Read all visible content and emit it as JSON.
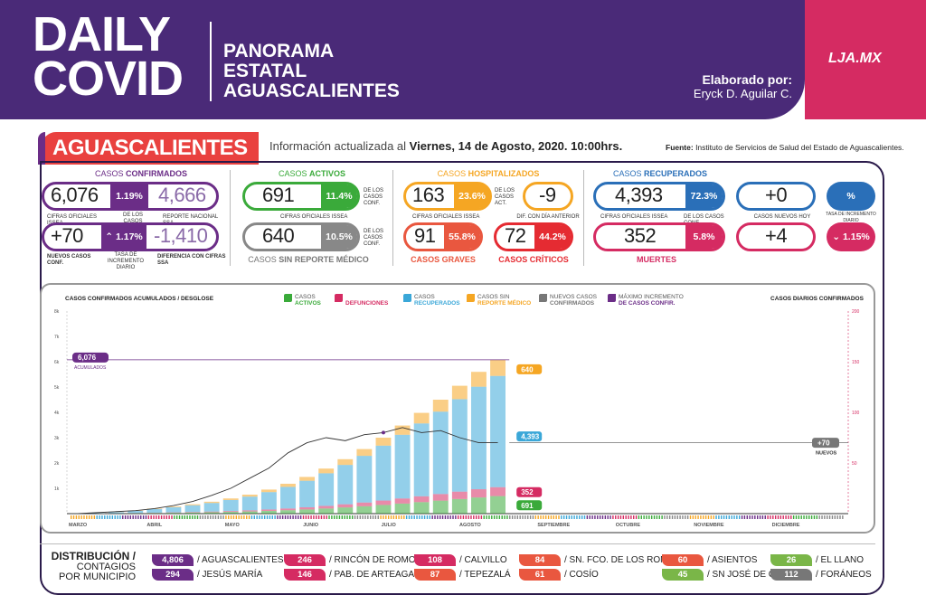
{
  "header": {
    "title_l1": "DAILY",
    "title_l2": "COVID",
    "sub1": "PANORAMA",
    "sub2": "ESTATAL",
    "sub3": "AGUASCALIENTES",
    "elab_label": "Elaborado por:",
    "elab_name": "Eryck D. Aguilar C.",
    "logo": "LJA.MX"
  },
  "state": "AGUASCALIENTES",
  "update_prefix": "Información actualizada al ",
  "update_date": "Viernes, 14 de Agosto, 2020. 10:00hrs.",
  "fuente_label": "Fuente:",
  "fuente_text": " Instituto de Servicios de Salud del Estado de Aguascalientes.",
  "confirmados": {
    "h1": "CASOS ",
    "h2": "CONFIRMADOS",
    "value": "6,076",
    "pct": "1.19%",
    "pct_label": "DE LOS CASOS NACIONALES",
    "nat": "4,666",
    "l_value": "CIFRAS OFICIALES ISSEA",
    "l_nat": "REPORTE NACIONAL SSA",
    "new": "+70",
    "new_label": "NUEVOS CASOS CONF.",
    "rate": "1.17%",
    "rate_label": "TASA DE INCREMENTO DIARIO",
    "diff": "-1,410",
    "diff_label": "DIFERENCIA CON CIFRAS SSA"
  },
  "activos": {
    "h1": "CASOS ",
    "h2": "ACTIVOS",
    "value": "691",
    "pct": "11.4%",
    "pct_label": "DE LOS CASOS CONF.",
    "l_value": "CIFRAS OFICIALES ISSEA",
    "sr_value": "640",
    "sr_pct": "10.5%",
    "sr_label": "DE LOS CASOS CONF.",
    "sr_h1": "CASOS ",
    "sr_h2": "SIN REPORTE MÉDICO"
  },
  "hosp": {
    "h1": "CASOS ",
    "h2": "HOSPITALIZADOS",
    "value": "163",
    "pct": "23.6%",
    "pct_label": "DE LOS CASOS ACT.",
    "l_value": "CIFRAS OFICIALES ISSEA",
    "dif": "-9",
    "dif_label": "DIF. CON DÍA ANTERIOR",
    "graves": "91",
    "graves_pct": "55.8%",
    "graves_label": "CASOS GRAVES",
    "crit": "72",
    "crit_pct": "44.2%",
    "crit_label": "CASOS CRÍTICOS"
  },
  "recup": {
    "h1": "CASOS ",
    "h2": "RECUPERADOS",
    "value": "4,393",
    "pct": "72.3%",
    "l_value": "CIFRAS OFICIALES ISSEA",
    "pct_label": "DE LOS CASOS CONF.",
    "new": "+0",
    "new_label": "CASOS NUEVOS HOY",
    "rate": "%",
    "rate_label": "TASA DE INCREMENTO DIARIO",
    "muertes": "352",
    "m_pct": "5.8%",
    "m_label": "MUERTES",
    "m_new": "+4",
    "m_rate": "1.15%"
  },
  "chart_header": {
    "left": "CASOS CONFIRMADOS ACUMULADOS / DESGLOSE",
    "right": "CASOS DIARIOS CONFIRMADOS"
  },
  "legend": [
    {
      "l1": "CASOS",
      "l2": "ACTIVOS",
      "color": "#3aaa3a"
    },
    {
      "l1": "",
      "l2": "DEFUNCIONES",
      "color": "#d52b62"
    },
    {
      "l1": "CASOS",
      "l2": "RECUPERADOS",
      "color": "#3aa7d8"
    },
    {
      "l1": "CASOS SIN",
      "l2": "REPORTE MÉDICO",
      "color": "#f5a623"
    },
    {
      "l1": "NUEVOS CASOS",
      "l2": "CONFIRMADOS",
      "color": "#777777"
    },
    {
      "l1": "MÁXIMO INCREMENTO",
      "l2": "DE CASOS CONFIR.",
      "color": "#6b2d87"
    }
  ],
  "chart_data": {
    "type": "bar",
    "categories": [
      "MARZO",
      "ABRIL",
      "MAYO",
      "JUNIO",
      "JULIO",
      "AGOSTO",
      "SEPTIEMBRE",
      "OCTUBRE",
      "NOVIEMBRE",
      "DICIEMBRE"
    ],
    "left_ticks": [
      "8k",
      "7k",
      "6k",
      "5k",
      "4k",
      "3k",
      "2k",
      "1k"
    ],
    "right_ticks": [
      "200",
      "150",
      "100",
      "50"
    ],
    "ylim_left": [
      0,
      8000
    ],
    "ylim_right": [
      0,
      200
    ],
    "acum_label": "6,076",
    "acum_sub": "ACUMULADOS",
    "end_labels": {
      "sin_reporte": "640",
      "recuperados": "4,393",
      "defunciones": "352",
      "activos": "691",
      "nuevos": "+70",
      "nuevos_sub": "NUEVOS"
    },
    "cumulative_confirmed": [
      5,
      20,
      60,
      120,
      200,
      280,
      370,
      470,
      600,
      750,
      950,
      1180,
      1450,
      1780,
      2150,
      2550,
      3000,
      3480,
      3980,
      4500,
      5050,
      5600,
      6076
    ],
    "daily_new": [
      0,
      1,
      2,
      3,
      5,
      8,
      12,
      18,
      25,
      35,
      45,
      60,
      70,
      75,
      72,
      78,
      80,
      85,
      80,
      82,
      75,
      70,
      70
    ]
  },
  "dist": {
    "t1": "DISTRIBUCIÓN /",
    "t2": "CONTAGIOS",
    "t3": "POR MUNICIPIO"
  },
  "municipios": [
    {
      "n": "4,806",
      "name": "/ AGUASCALIENTES",
      "c": "#6b2d87"
    },
    {
      "n": "294",
      "name": "/ JESÚS MARÍA",
      "c": "#6b2d87"
    },
    {
      "n": "246",
      "name": "/ RINCÓN DE ROMOS",
      "c": "#d52b62"
    },
    {
      "n": "146",
      "name": "/ PAB. DE ARTEAGA",
      "c": "#d52b62"
    },
    {
      "n": "108",
      "name": "/ CALVILLO",
      "c": "#d52b62"
    },
    {
      "n": "87",
      "name": "/ TEPEZALÁ",
      "c": "#e9573f"
    },
    {
      "n": "84",
      "name": "/ SN. FCO. DE LOS ROMO",
      "c": "#e9573f"
    },
    {
      "n": "61",
      "name": "/ COSÍO",
      "c": "#e9573f"
    },
    {
      "n": "60",
      "name": "/ ASIENTOS",
      "c": "#e9573f"
    },
    {
      "n": "45",
      "name": "/ SN JOSÉ DE G.",
      "c": "#7ab648"
    },
    {
      "n": "26",
      "name": "/ EL LLANO",
      "c": "#7ab648"
    },
    {
      "n": "112",
      "name": "/ FORÁNEOS",
      "c": "#777777"
    }
  ]
}
